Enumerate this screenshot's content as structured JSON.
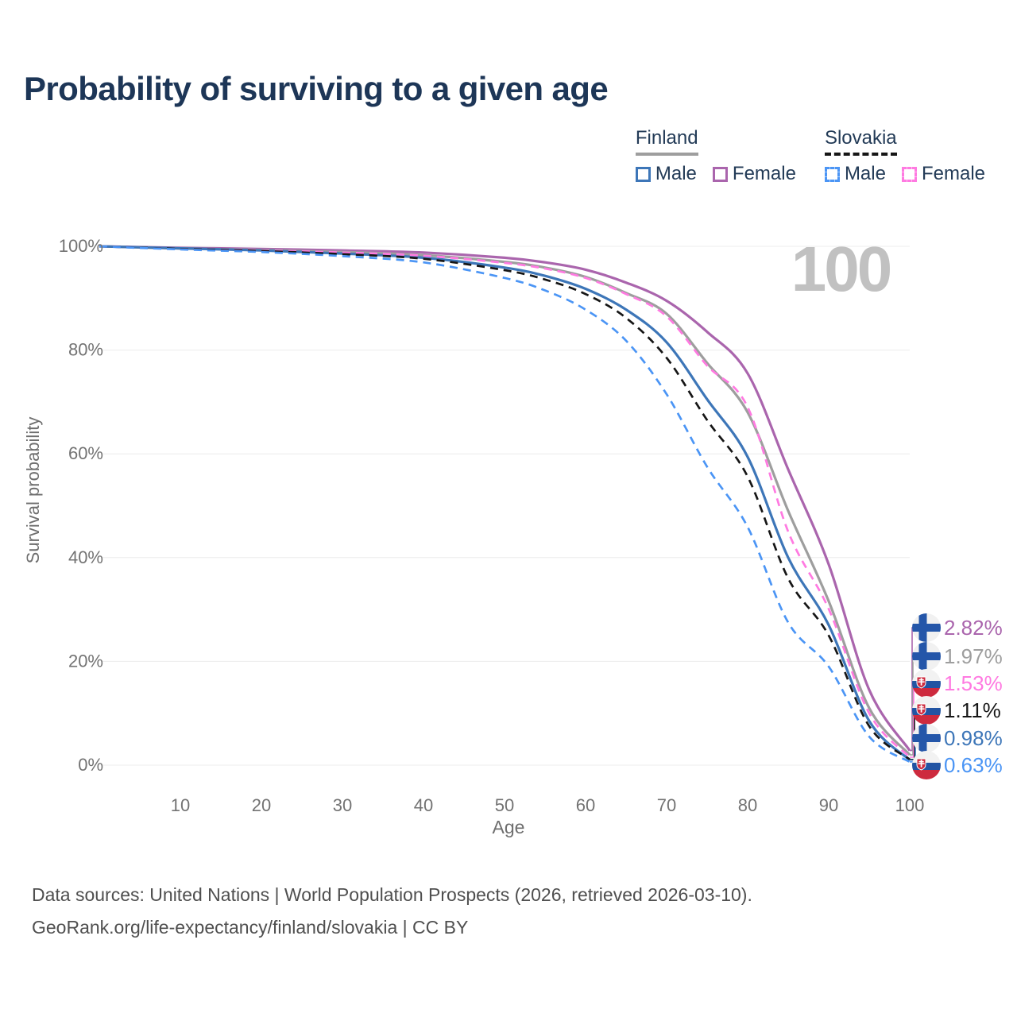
{
  "title": "Probability of surviving to a given age",
  "age_counter": "100",
  "legend": {
    "groups": [
      {
        "name": "Finland",
        "line_style": "solid",
        "line_color": "#9e9e9e",
        "items": [
          {
            "label": "Male",
            "color": "#3d76b8",
            "dashed": false
          },
          {
            "label": "Female",
            "color": "#aa65ad",
            "dashed": false
          }
        ]
      },
      {
        "name": "Slovakia",
        "line_style": "dashed",
        "line_color": "#161616",
        "items": [
          {
            "label": "Male",
            "color": "#4b95f5",
            "dashed": true
          },
          {
            "label": "Female",
            "color": "#ff7ae1",
            "dashed": true
          }
        ]
      }
    ]
  },
  "chart_data": {
    "type": "line",
    "title": "Probability of surviving to a given age",
    "xlabel": "Age",
    "ylabel": "Survival probability",
    "xlim": [
      0,
      100
    ],
    "ylim": [
      0,
      100
    ],
    "grid": "horizontal",
    "x_ticks": [
      10,
      20,
      30,
      40,
      50,
      60,
      70,
      80,
      90,
      100
    ],
    "y_ticks": [
      {
        "label": "0%",
        "value": 0
      },
      {
        "label": "20%",
        "value": 20
      },
      {
        "label": "40%",
        "value": 40
      },
      {
        "label": "60%",
        "value": 60
      },
      {
        "label": "80%",
        "value": 80
      },
      {
        "label": "100%",
        "value": 100
      }
    ],
    "ages": [
      0,
      10,
      20,
      30,
      40,
      50,
      55,
      60,
      65,
      70,
      75,
      80,
      85,
      90,
      95,
      100
    ],
    "series": [
      {
        "name": "Finland Female",
        "country": "Finland",
        "sex": "Female",
        "color": "#aa65ad",
        "dashed": false,
        "end_label": "2.82%",
        "values": [
          100,
          99.7,
          99.5,
          99.2,
          98.8,
          97.8,
          96.9,
          95.5,
          93.0,
          89.5,
          83.5,
          75.5,
          57.0,
          38.7,
          14.5,
          2.82
        ]
      },
      {
        "name": "Finland Both sexes",
        "country": "Finland",
        "sex": "Both",
        "color": "#9e9e9e",
        "dashed": false,
        "end_label": "1.97%",
        "values": [
          100,
          99.6,
          99.3,
          98.9,
          98.3,
          97.0,
          95.9,
          94.1,
          91.0,
          87.0,
          77.5,
          68.0,
          49.0,
          31.6,
          11.0,
          1.97
        ]
      },
      {
        "name": "Slovakia Female",
        "country": "Slovakia",
        "sex": "Female",
        "color": "#ff7ae1",
        "dashed": true,
        "end_label": "1.53%",
        "values": [
          100,
          99.5,
          99.2,
          98.8,
          98.2,
          96.8,
          95.7,
          93.9,
          90.8,
          86.5,
          77.0,
          69.0,
          45.0,
          30.1,
          10.0,
          1.53
        ]
      },
      {
        "name": "Slovakia Both sexes",
        "country": "Slovakia",
        "sex": "Both",
        "color": "#161616",
        "dashed": true,
        "end_label": "1.11%",
        "values": [
          100,
          99.5,
          99.1,
          98.5,
          97.6,
          95.4,
          93.6,
          90.8,
          86.2,
          78.5,
          66.5,
          55.6,
          36.0,
          25.0,
          7.5,
          1.11
        ]
      },
      {
        "name": "Finland Male",
        "country": "Finland",
        "sex": "Male",
        "color": "#3d76b8",
        "dashed": false,
        "end_label": "0.98%",
        "values": [
          100,
          99.6,
          99.2,
          98.6,
          97.8,
          95.9,
          94.3,
          91.8,
          87.8,
          81.5,
          70.5,
          59.4,
          40.0,
          27.0,
          8.5,
          0.98
        ]
      },
      {
        "name": "Slovakia Male",
        "country": "Slovakia",
        "sex": "Male",
        "color": "#4b95f5",
        "dashed": true,
        "end_label": "0.63%",
        "values": [
          100,
          99.4,
          98.9,
          98.1,
          96.9,
          93.9,
          91.5,
          87.8,
          81.8,
          71.5,
          57.5,
          45.9,
          27.5,
          19.0,
          5.5,
          0.63
        ]
      }
    ],
    "end_labels": [
      {
        "label": "2.82%",
        "value": 2.82,
        "flag": "finland",
        "color": "#aa65ad"
      },
      {
        "label": "1.97%",
        "value": 1.97,
        "flag": "finland",
        "color": "#9e9e9e"
      },
      {
        "label": "1.53%",
        "value": 1.53,
        "flag": "slovakia",
        "color": "#ff7ae1"
      },
      {
        "label": "1.11%",
        "value": 1.11,
        "flag": "slovakia",
        "color": "#161616"
      },
      {
        "label": "0.98%",
        "value": 0.98,
        "flag": "finland",
        "color": "#3d76b8"
      },
      {
        "label": "0.63%",
        "value": 0.63,
        "flag": "slovakia",
        "color": "#4b95f5"
      }
    ],
    "colors": {
      "grid": "#ececec",
      "tick_text": "#737373",
      "axis_title_text": "#6e6e6e",
      "watermark": "#c1c1c1"
    }
  },
  "footer": {
    "line1": "Data sources: United Nations | World Population Prospects (2026, retrieved 2026-03-10).",
    "line2": "GeoRank.org/life-expectancy/finland/slovakia | CC BY"
  }
}
